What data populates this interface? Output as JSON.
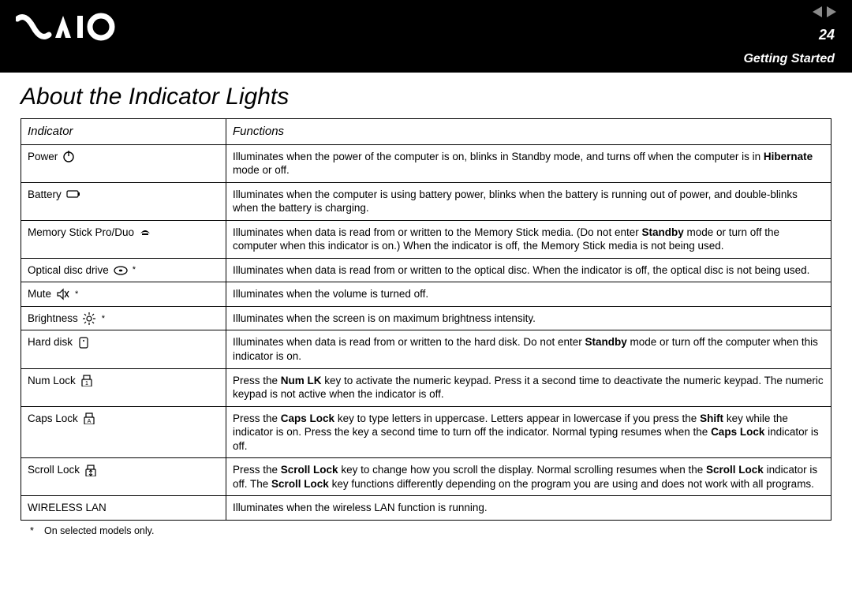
{
  "header": {
    "page_number": "24",
    "section": "Getting Started",
    "logo_alt": "VAIO"
  },
  "title": "About the Indicator Lights",
  "table": {
    "columns": [
      "Indicator",
      "Functions"
    ],
    "rows": [
      {
        "indicator": "Power",
        "icon": "power-icon",
        "asterisk": false,
        "func_html": "Illuminates when the power of the computer is on, blinks in Standby mode, and turns off when the computer is in <b>Hibernate</b> mode or off."
      },
      {
        "indicator": "Battery",
        "icon": "battery-icon",
        "asterisk": false,
        "func_html": "Illuminates when the computer is using battery power, blinks when the battery is running out of power, and double-blinks when the battery is charging."
      },
      {
        "indicator": "Memory Stick Pro/Duo",
        "icon": "memorystick-icon",
        "asterisk": false,
        "func_html": "Illuminates when data is read from or written to the Memory Stick media. (Do not enter <b>Standby</b> mode or turn off the computer when this indicator is on.) When the indicator is off, the Memory Stick media is not being used."
      },
      {
        "indicator": "Optical disc drive",
        "icon": "optical-icon",
        "asterisk": true,
        "func_html": "Illuminates when data is read from or written to the optical disc. When the indicator is off, the optical disc is not being used."
      },
      {
        "indicator": "Mute",
        "icon": "mute-icon",
        "asterisk": true,
        "func_html": "Illuminates when the volume is turned off."
      },
      {
        "indicator": "Brightness",
        "icon": "brightness-icon",
        "asterisk": true,
        "func_html": "Illuminates when the screen is on maximum brightness intensity."
      },
      {
        "indicator": "Hard disk",
        "icon": "harddisk-icon",
        "asterisk": false,
        "func_html": "Illuminates when data is read from or written to the hard disk. Do not enter <b>Standby</b> mode or turn off the computer when this indicator is on."
      },
      {
        "indicator": "Num Lock",
        "icon": "numlock-icon",
        "asterisk": false,
        "func_html": "Press the <b>Num LK</b> key to activate the numeric keypad. Press it a second time to deactivate the numeric keypad. The numeric keypad is not active when the indicator is off."
      },
      {
        "indicator": "Caps Lock",
        "icon": "capslock-icon",
        "asterisk": false,
        "func_html": "Press the <b>Caps Lock</b> key to type letters in uppercase. Letters appear in lowercase if you press the <b>Shift</b> key while the indicator is on. Press the key a second time to turn off the indicator. Normal typing resumes when the <b>Caps Lock</b> indicator is off."
      },
      {
        "indicator": "Scroll Lock",
        "icon": "scrolllock-icon",
        "asterisk": false,
        "func_html": "Press the <b>Scroll Lock</b> key to change how you scroll the display. Normal scrolling resumes when the <b>Scroll Lock</b> indicator is off. The <b>Scroll Lock</b> key functions differently depending on the program you are using and does not work with all programs."
      },
      {
        "indicator": "WIRELESS LAN",
        "icon": "",
        "asterisk": false,
        "func_html": "Illuminates when the wireless LAN function is running."
      }
    ]
  },
  "footnote": {
    "mark": "*",
    "text": "On selected models only."
  },
  "colors": {
    "header_bg": "#000000",
    "text": "#000000",
    "page_bg": "#ffffff"
  }
}
